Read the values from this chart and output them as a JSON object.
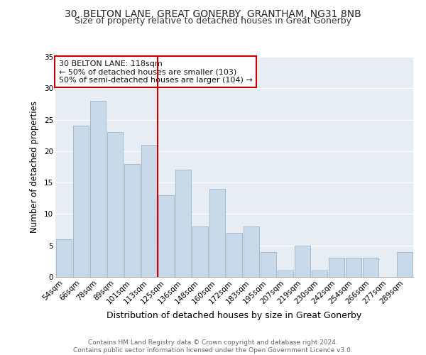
{
  "title": "30, BELTON LANE, GREAT GONERBY, GRANTHAM, NG31 8NB",
  "subtitle": "Size of property relative to detached houses in Great Gonerby",
  "xlabel": "Distribution of detached houses by size in Great Gonerby",
  "ylabel": "Number of detached properties",
  "categories": [
    "54sqm",
    "66sqm",
    "78sqm",
    "89sqm",
    "101sqm",
    "113sqm",
    "125sqm",
    "136sqm",
    "148sqm",
    "160sqm",
    "172sqm",
    "183sqm",
    "195sqm",
    "207sqm",
    "219sqm",
    "230sqm",
    "242sqm",
    "254sqm",
    "266sqm",
    "277sqm",
    "289sqm"
  ],
  "values": [
    6,
    24,
    28,
    23,
    18,
    21,
    13,
    17,
    8,
    14,
    7,
    8,
    4,
    1,
    5,
    1,
    3,
    3,
    3,
    0,
    4
  ],
  "bar_color": "#c8d9ea",
  "bar_edge_color": "#9ab4cc",
  "highlight_line_color": "#cc0000",
  "annotation_text": "30 BELTON LANE: 118sqm\n← 50% of detached houses are smaller (103)\n50% of semi-detached houses are larger (104) →",
  "annotation_box_color": "#ffffff",
  "annotation_box_edge_color": "#cc0000",
  "ylim": [
    0,
    35
  ],
  "yticks": [
    0,
    5,
    10,
    15,
    20,
    25,
    30,
    35
  ],
  "background_color": "#e8edf4",
  "grid_color": "#ffffff",
  "footer": "Contains HM Land Registry data © Crown copyright and database right 2024.\nContains public sector information licensed under the Open Government Licence v3.0.",
  "title_fontsize": 10,
  "subtitle_fontsize": 9,
  "xlabel_fontsize": 9,
  "ylabel_fontsize": 8.5,
  "tick_fontsize": 7.5,
  "annotation_fontsize": 8,
  "footer_fontsize": 6.5
}
